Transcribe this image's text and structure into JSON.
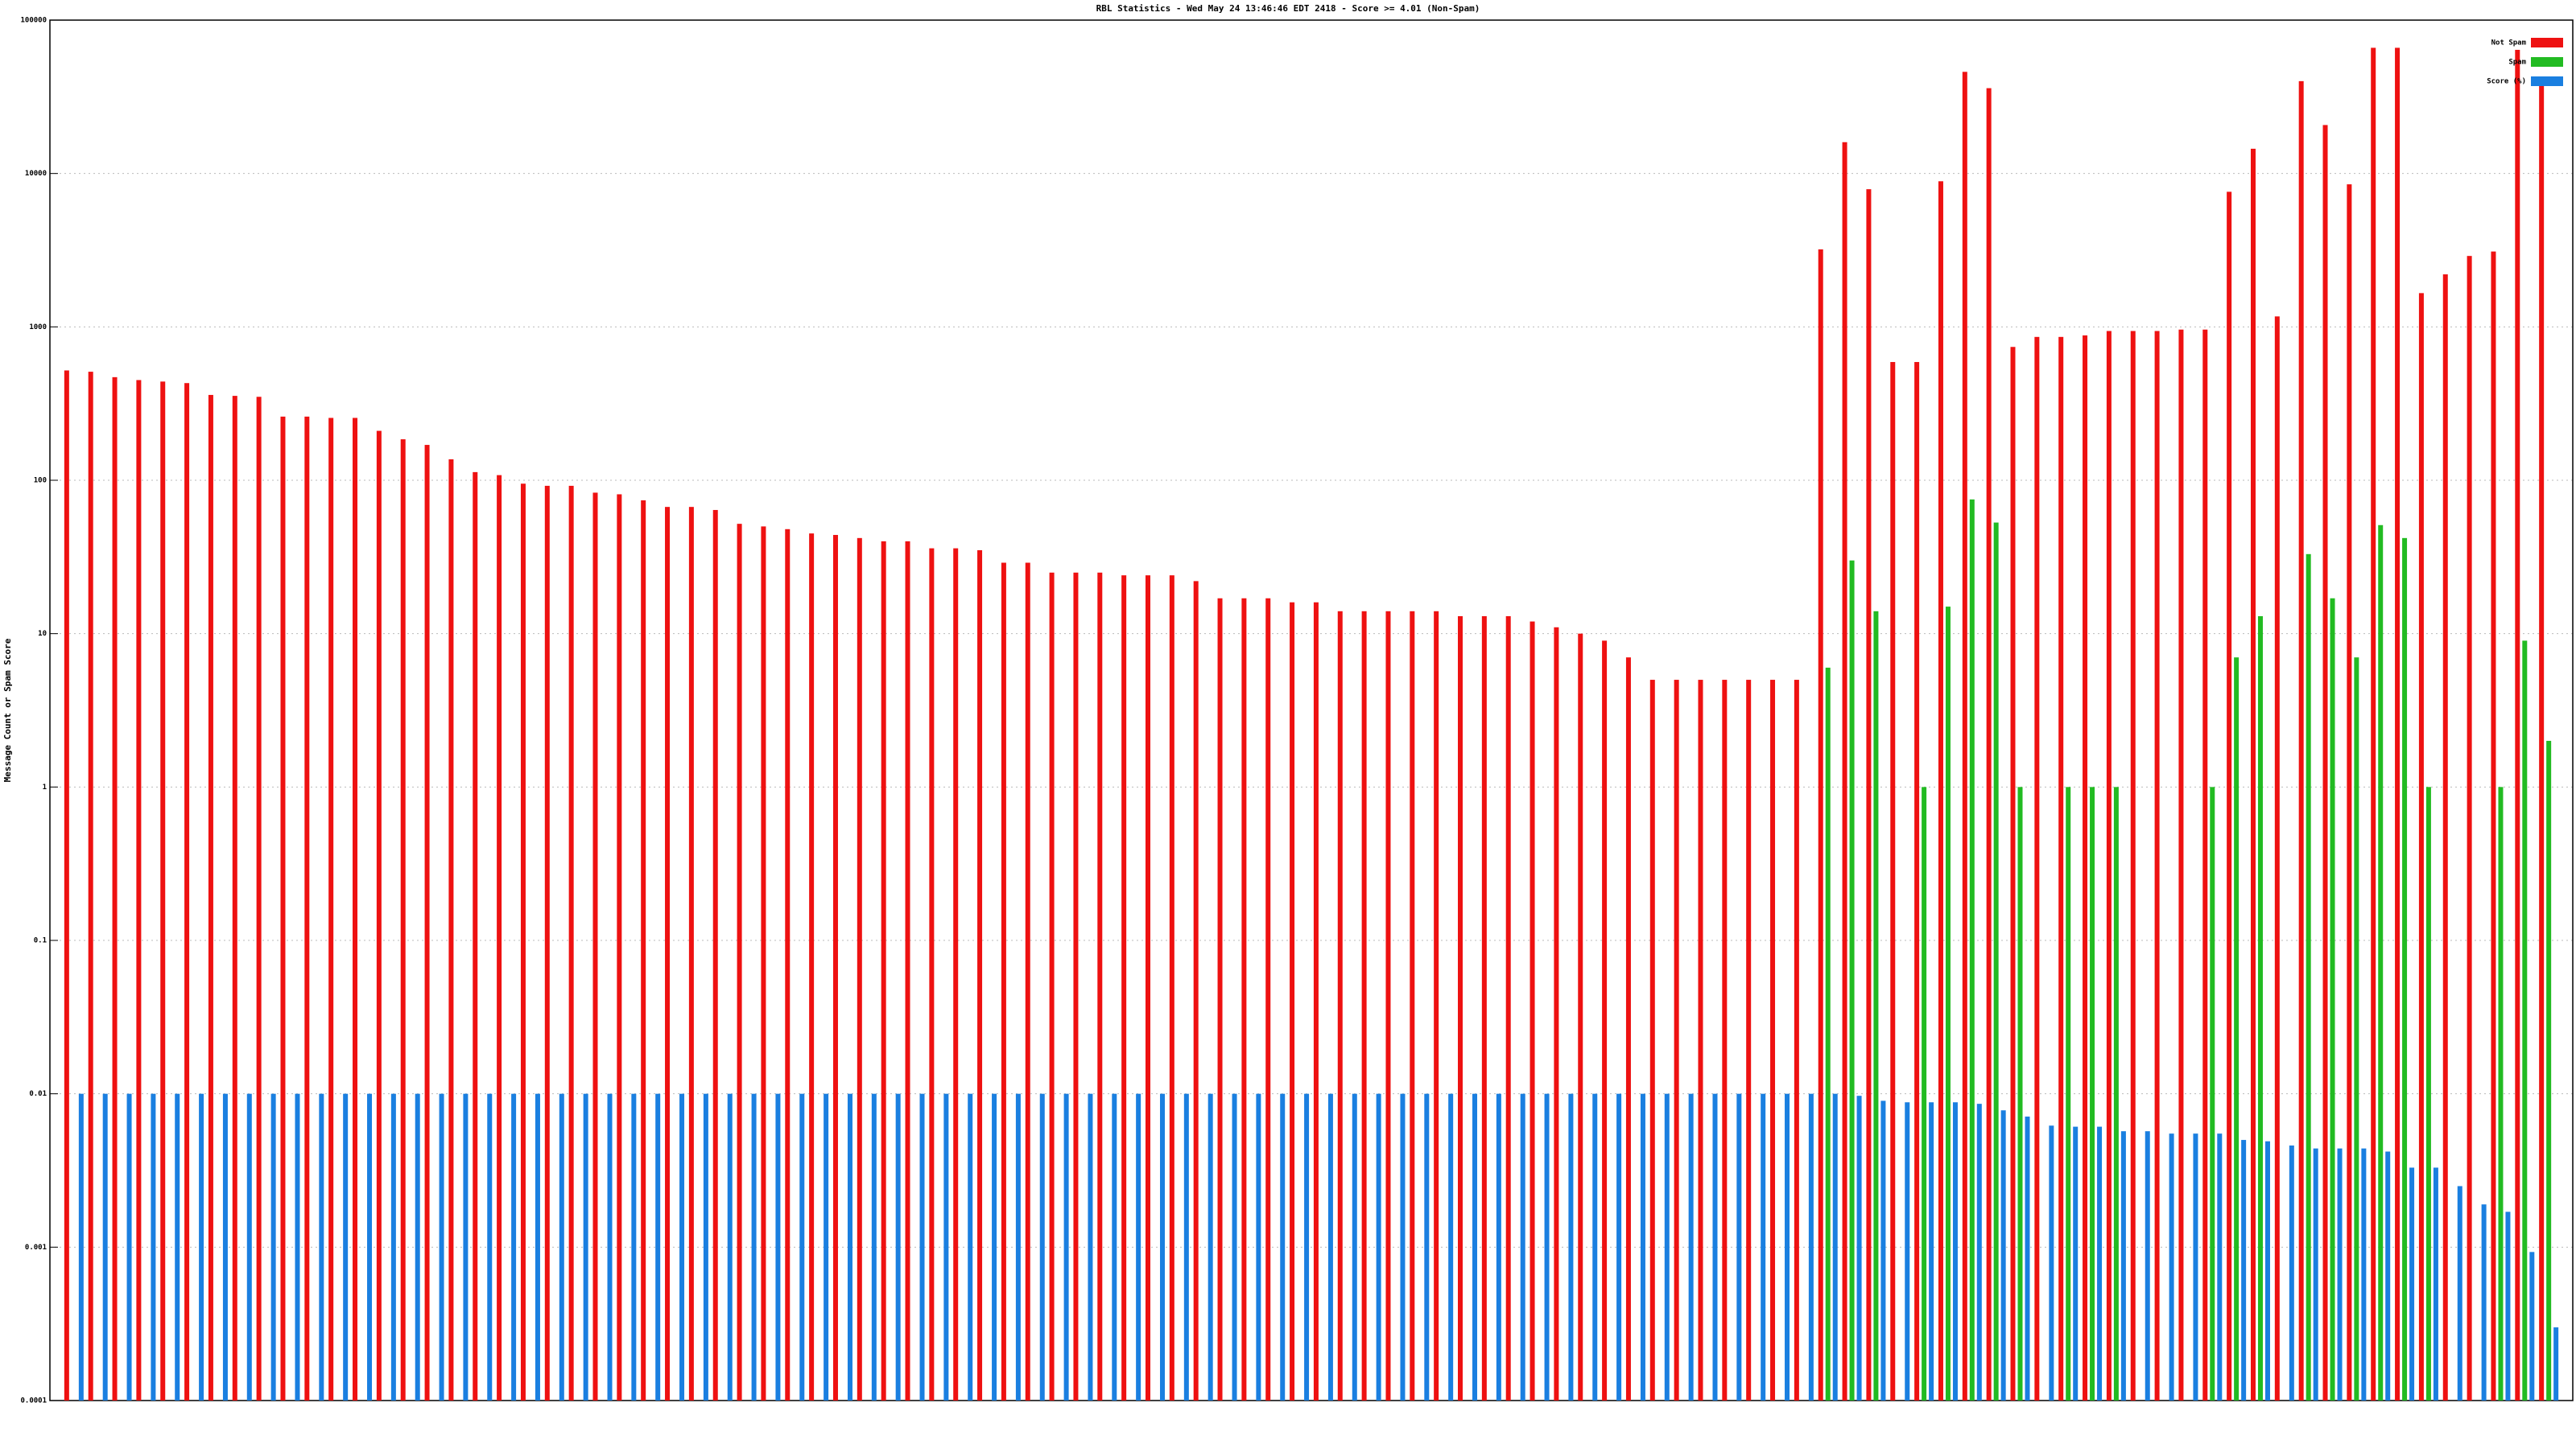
{
  "chart_data": {
    "type": "bar",
    "title": "RBL Statistics - Wed May 24 13:46:46 EDT 2418 - Score >= 4.01 (Non-Spam)",
    "y_label": "Message Count or Spam Score",
    "log_y": true,
    "grid": true,
    "legend": "upper right",
    "ylim": [
      0.0001,
      100000
    ],
    "yticks": [
      0.0001,
      0.001,
      0.01,
      0.1,
      1,
      10,
      100,
      1000,
      10000,
      100000
    ],
    "categories": [
      null,
      null,
      null,
      null,
      null,
      null,
      null,
      null,
      null,
      null,
      null,
      null,
      null,
      null,
      null,
      null,
      null,
      null,
      null,
      null,
      null,
      null,
      null,
      null,
      null,
      null,
      null,
      null,
      null,
      null,
      null,
      null,
      null,
      null,
      null,
      null,
      null,
      null,
      null,
      null,
      null,
      null,
      null,
      null,
      null,
      null,
      null,
      null,
      null,
      null,
      null,
      null,
      null,
      null,
      null,
      null,
      null,
      null,
      null,
      null,
      null,
      null,
      null,
      null,
      null,
      null,
      null,
      null,
      null,
      null,
      null,
      null,
      null,
      null,
      null,
      null,
      null,
      null,
      null,
      null,
      null,
      null,
      null,
      null,
      null,
      null,
      null,
      null,
      null,
      null,
      null,
      null,
      null,
      null,
      null,
      null,
      null,
      null,
      null,
      null,
      null,
      null,
      null,
      null
    ],
    "series": [
      {
        "name": "Not Spam",
        "color": "#ee1111",
        "values": [
          520,
          510,
          470,
          450,
          440,
          430,
          360,
          355,
          350,
          260,
          260,
          255,
          255,
          210,
          185,
          170,
          137,
          113,
          108,
          95,
          92,
          92,
          83,
          81,
          74,
          67,
          67,
          64,
          52,
          50,
          48,
          45,
          44,
          42,
          40,
          40,
          36,
          36,
          35,
          29,
          29,
          25,
          25,
          25,
          24,
          24,
          24,
          22,
          17,
          17,
          17,
          16,
          16,
          14,
          14,
          14,
          14,
          14,
          13,
          13,
          13,
          12,
          11,
          10,
          9,
          7,
          5,
          5,
          5,
          5,
          5,
          5,
          5,
          3200,
          16000,
          7900,
          590,
          590,
          8900,
          46000,
          36000,
          740,
          860,
          860,
          880,
          940,
          940,
          940,
          960,
          960,
          7600,
          14500,
          1170,
          40000,
          20700,
          8500,
          66000,
          66000,
          1660,
          2200,
          2900,
          3100,
          64000,
          38000
        ]
      },
      {
        "name": "Spam",
        "color": "#22bb22",
        "values": [
          null,
          null,
          null,
          null,
          null,
          null,
          null,
          null,
          null,
          null,
          null,
          null,
          null,
          null,
          null,
          null,
          null,
          null,
          null,
          null,
          null,
          null,
          null,
          null,
          null,
          null,
          null,
          null,
          null,
          null,
          null,
          null,
          null,
          null,
          null,
          null,
          null,
          null,
          null,
          null,
          null,
          null,
          null,
          null,
          null,
          null,
          null,
          null,
          null,
          null,
          null,
          null,
          null,
          null,
          null,
          null,
          null,
          null,
          null,
          null,
          null,
          null,
          null,
          null,
          null,
          null,
          null,
          null,
          null,
          null,
          null,
          null,
          null,
          6,
          30,
          14,
          null,
          1,
          15,
          75,
          53,
          1,
          null,
          1,
          1,
          1,
          null,
          null,
          null,
          1,
          7,
          13,
          null,
          33,
          17,
          7,
          51,
          42,
          1,
          null,
          null,
          1,
          9,
          2
        ]
      },
      {
        "name": "Score (%)",
        "color": "#1a7fe0",
        "values": [
          0.01,
          0.01,
          0.01,
          0.01,
          0.01,
          0.01,
          0.01,
          0.01,
          0.01,
          0.01,
          0.01,
          0.01,
          0.01,
          0.01,
          0.01,
          0.01,
          0.01,
          0.01,
          0.01,
          0.01,
          0.01,
          0.01,
          0.01,
          0.01,
          0.01,
          0.01,
          0.01,
          0.01,
          0.01,
          0.01,
          0.01,
          0.01,
          0.01,
          0.01,
          0.01,
          0.01,
          0.01,
          0.01,
          0.01,
          0.01,
          0.01,
          0.01,
          0.01,
          0.01,
          0.01,
          0.01,
          0.01,
          0.01,
          0.01,
          0.01,
          0.01,
          0.01,
          0.01,
          0.01,
          0.01,
          0.01,
          0.01,
          0.01,
          0.01,
          0.01,
          0.01,
          0.01,
          0.01,
          0.01,
          0.01,
          0.01,
          0.01,
          0.01,
          0.01,
          0.01,
          0.01,
          0.01,
          0.01,
          0.01,
          0.0097,
          0.009,
          0.0088,
          0.0088,
          0.0088,
          0.0086,
          0.0078,
          0.0071,
          0.0062,
          0.0061,
          0.0061,
          0.0057,
          0.0057,
          0.0055,
          0.0055,
          0.0055,
          0.005,
          0.0049,
          0.0046,
          0.0044,
          0.0044,
          0.0044,
          0.0042,
          0.0033,
          0.0033,
          0.0025,
          0.0019,
          0.0017,
          0.00093,
          0.0003
        ]
      }
    ]
  }
}
